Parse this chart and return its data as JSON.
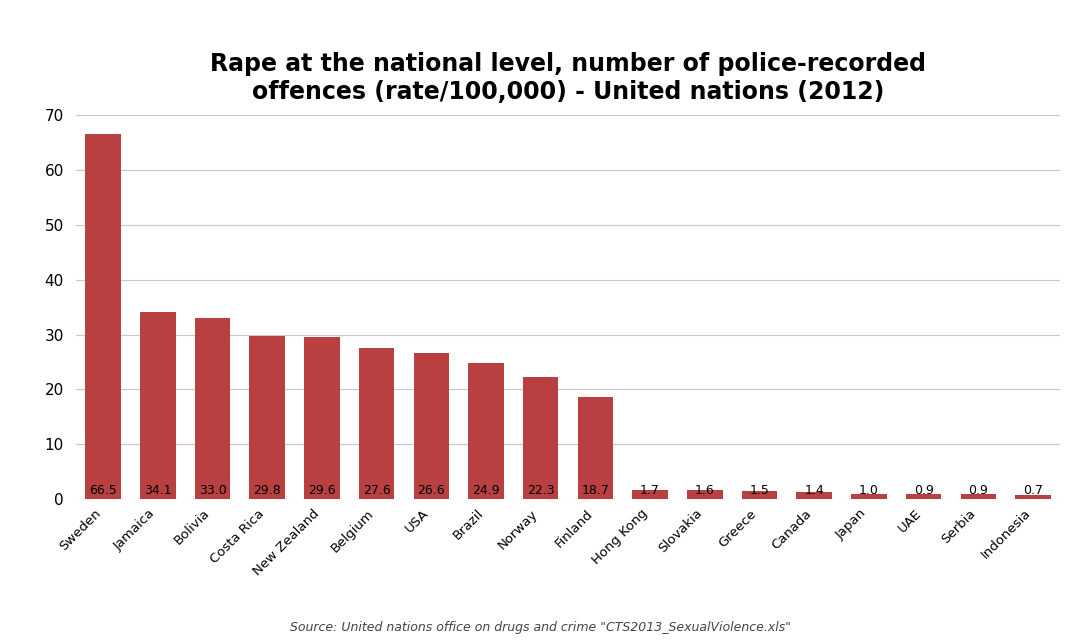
{
  "title": "Rape at the national level, number of police-recorded\noffences (rate/100,000) - United nations (2012)",
  "categories": [
    "Sweden",
    "Jamaica",
    "Bolivia",
    "Costa Rica",
    "New Zealand",
    "Belgium",
    "USA",
    "Brazil",
    "Norway",
    "Finland",
    "Hong Kong",
    "Slovakia",
    "Greece",
    "Canada",
    "Japan",
    "UAE",
    "Serbia",
    "Indonesia"
  ],
  "values": [
    66.5,
    34.1,
    33.0,
    29.8,
    29.6,
    27.6,
    26.6,
    24.9,
    22.3,
    18.7,
    1.7,
    1.6,
    1.5,
    1.4,
    1.0,
    0.9,
    0.9,
    0.7
  ],
  "bar_color": "#b94040",
  "ylim": [
    0,
    70
  ],
  "yticks": [
    0,
    10,
    20,
    30,
    40,
    50,
    60,
    70
  ],
  "background_color": "#ffffff",
  "grid_color": "#c8c8c8",
  "title_fontsize": 17,
  "label_fontsize": 9.5,
  "value_label_fontsize": 9,
  "ytick_fontsize": 11,
  "source_text": "Source: United nations office on drugs and crime \"CTS2013_SexualViolence.xls\"",
  "source_fontsize": 9
}
